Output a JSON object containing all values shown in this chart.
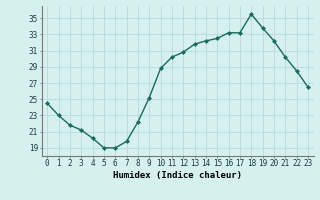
{
  "x": [
    0,
    1,
    2,
    3,
    4,
    5,
    6,
    7,
    8,
    9,
    10,
    11,
    12,
    13,
    14,
    15,
    16,
    17,
    18,
    19,
    20,
    21,
    22,
    23
  ],
  "y": [
    24.5,
    23.0,
    21.8,
    21.2,
    20.2,
    19.0,
    19.0,
    19.8,
    22.2,
    25.2,
    28.8,
    30.2,
    30.8,
    31.8,
    32.2,
    32.5,
    33.2,
    33.2,
    35.5,
    33.8,
    32.2,
    30.2,
    28.5,
    26.5
  ],
  "line_color": "#1a6b5a",
  "marker": "D",
  "marker_size": 2.0,
  "bg_color": "#d6f0f0",
  "grid_color": "#b8dada",
  "xlabel": "Humidex (Indice chaleur)",
  "xlim": [
    -0.5,
    23.5
  ],
  "ylim": [
    18.0,
    36.5
  ],
  "yticks": [
    19,
    21,
    23,
    25,
    27,
    29,
    31,
    33,
    35
  ],
  "xticks": [
    0,
    1,
    2,
    3,
    4,
    5,
    6,
    7,
    8,
    9,
    10,
    11,
    12,
    13,
    14,
    15,
    16,
    17,
    18,
    19,
    20,
    21,
    22,
    23
  ],
  "tick_fontsize": 5.5,
  "label_fontsize": 6.5,
  "line_width": 1.0,
  "spine_color": "#777777"
}
